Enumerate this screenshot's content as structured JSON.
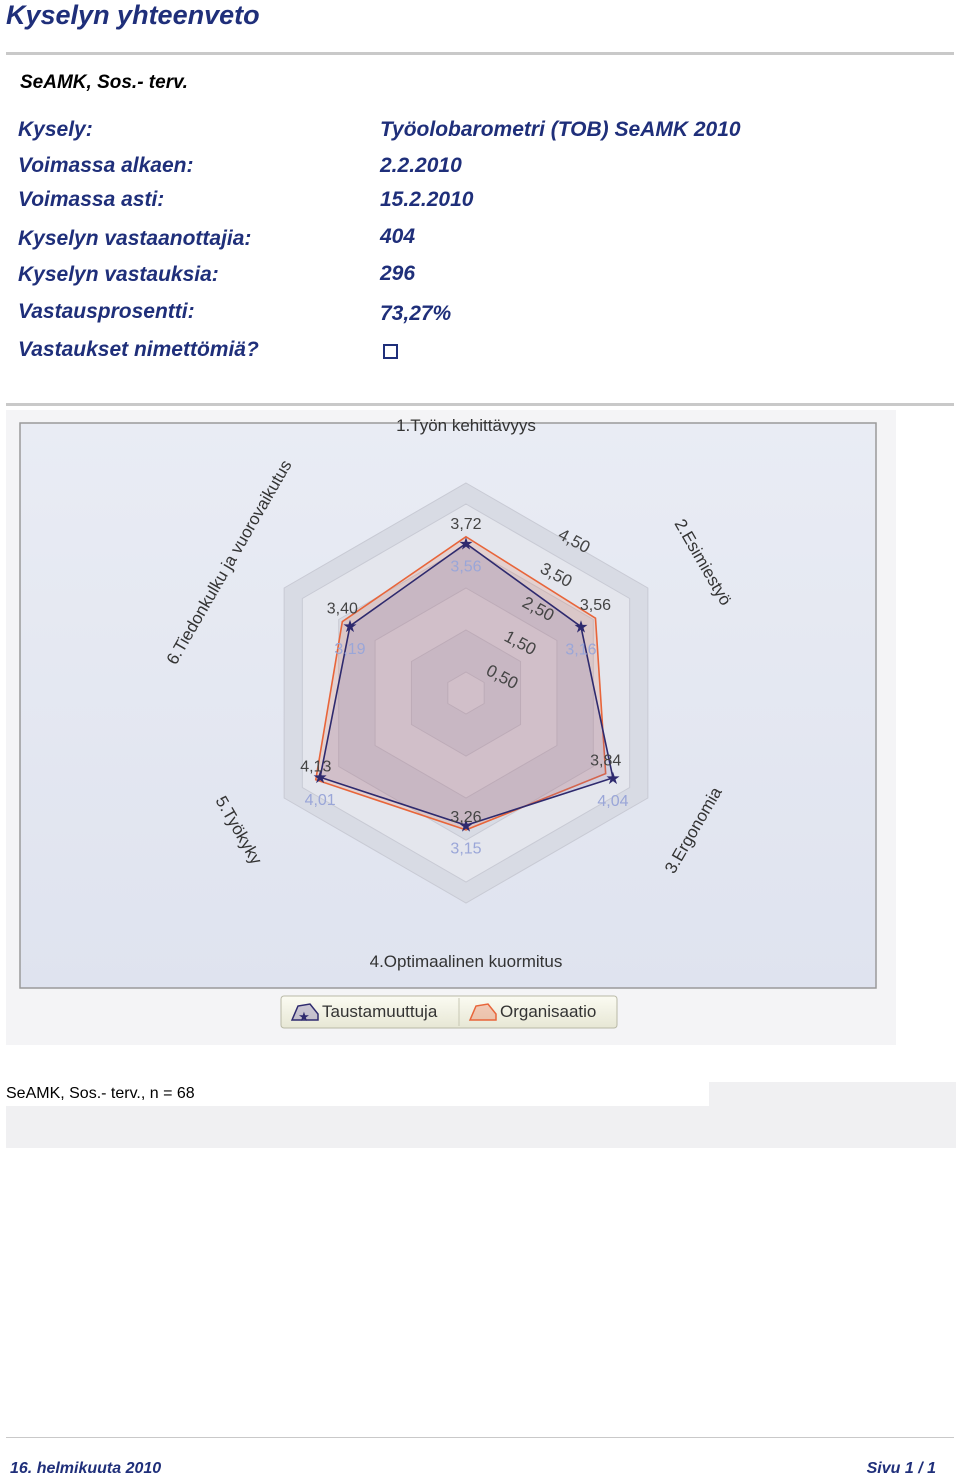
{
  "header": {
    "title": "Kyselyn yhteenveto",
    "subtitle": "SeAMK, Sos.- terv."
  },
  "info": {
    "survey_label": "Kysely:",
    "survey_value": "Työolobarometri (TOB) SeAMK 2010",
    "valid_from_label": "Voimassa alkaen:",
    "valid_from_value": "2.2.2010",
    "valid_to_label": "Voimassa asti:",
    "valid_to_value": "15.2.2010",
    "recipients_label": "Kyselyn vastaanottajia:",
    "recipients_value": "404",
    "responses_label": "Kyselyn vastauksia:",
    "responses_value": "296",
    "rate_label": "Vastausprosentti:",
    "rate_value": "73,27%",
    "anonymous_label": "Vastaukset nimettömiä?",
    "anonymous_checked": false
  },
  "chart_data": {
    "type": "radar",
    "categories": [
      "1.Työn kehittävyys",
      "2.Esimiestyö",
      "3.Ergonomia",
      "4.Optimaalinen kuormitus",
      "5.Työkyky",
      "6.Tiedonkulku ja vuorovaikutus"
    ],
    "ticks": [
      0.5,
      1.5,
      2.5,
      3.5,
      4.5
    ],
    "tick_labels": [
      "0,50",
      "1,50",
      "2,50",
      "3,50",
      "4,50"
    ],
    "range": [
      0,
      5
    ],
    "series": [
      {
        "name": "Taustamuuttuja",
        "color": "#2e2a6e",
        "marker": "star",
        "values": [
          3.56,
          3.16,
          4.04,
          3.15,
          4.01,
          3.19
        ],
        "labels": [
          "3,56",
          "3,16",
          "4,04",
          "3,15",
          "4,01",
          "3,19"
        ]
      },
      {
        "name": "Organisaatio",
        "color": "#e8653a",
        "values": [
          3.72,
          3.56,
          3.84,
          3.26,
          4.13,
          3.4
        ],
        "labels": [
          "3,72",
          "3,56",
          "3,84",
          "3,26",
          "4,13",
          "3,40"
        ]
      }
    ],
    "legend_position": "bottom"
  },
  "caption": "SeAMK, Sos.- terv., n = 68",
  "footer": {
    "date": "16. helmikuuta 2010",
    "page": "Sivu 1 / 1"
  }
}
